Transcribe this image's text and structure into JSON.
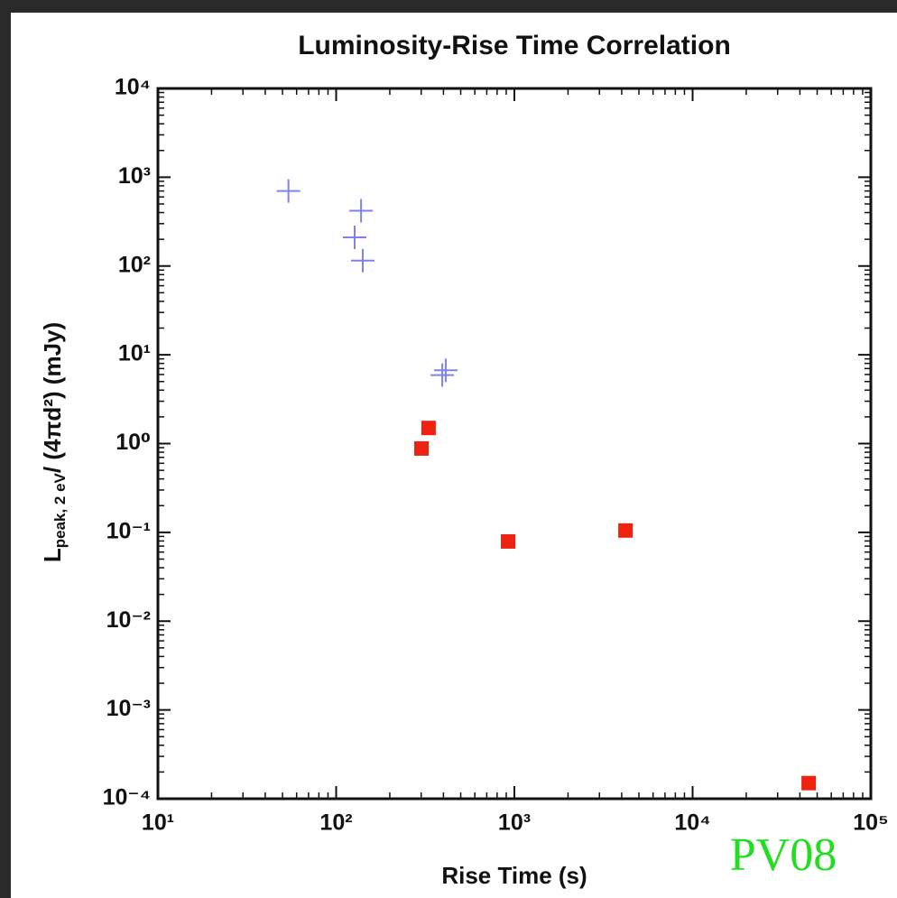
{
  "chart_data": {
    "type": "scatter",
    "title": "Luminosity-Rise Time Correlation",
    "xlabel": "Rise Time (s)",
    "ylabel": {
      "main": "L",
      "subscript": "peak, 2 eV",
      "rest": "/ (4πd²)  (mJy)"
    },
    "annotation": "PV08",
    "xscale": "log",
    "yscale": "log",
    "xlim": [
      10,
      100000
    ],
    "ylim": [
      0.0001,
      10000
    ],
    "xticks": [
      {
        "value": 10,
        "label": "10¹"
      },
      {
        "value": 100,
        "label": "10²"
      },
      {
        "value": 1000,
        "label": "10³"
      },
      {
        "value": 10000,
        "label": "10⁴"
      },
      {
        "value": 100000,
        "label": "10⁵"
      }
    ],
    "yticks": [
      {
        "value": 0.0001,
        "label": "10⁻⁴"
      },
      {
        "value": 0.001,
        "label": "10⁻³"
      },
      {
        "value": 0.01,
        "label": "10⁻²"
      },
      {
        "value": 0.1,
        "label": "10⁻¹"
      },
      {
        "value": 1,
        "label": "10⁰"
      },
      {
        "value": 10,
        "label": "10¹"
      },
      {
        "value": 100,
        "label": "10²"
      },
      {
        "value": 1000,
        "label": "10³"
      },
      {
        "value": 10000,
        "label": "10⁴"
      }
    ],
    "series": [
      {
        "color": "#8080ee",
        "marker": "plus",
        "x": [
          54,
          138,
          127,
          141,
          412,
          394
        ],
        "values": [
          700,
          420,
          210,
          115,
          6.7,
          5.9
        ]
      },
      {
        "color": "#ee2211",
        "marker": "square",
        "x": [
          330,
          301,
          922,
          4200,
          44800
        ],
        "values": [
          1.5,
          0.88,
          0.079,
          0.105,
          0.00015
        ]
      }
    ]
  }
}
